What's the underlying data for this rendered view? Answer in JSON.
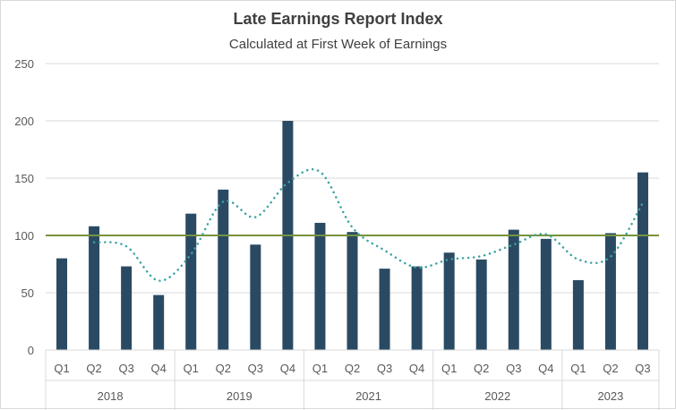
{
  "chart_data": {
    "type": "bar",
    "title": "Late Earnings Report Index",
    "subtitle": "Calculated at First Week of Earnings",
    "xlabel": "",
    "ylabel": "",
    "ylim": [
      0,
      250
    ],
    "yticks": [
      0,
      50,
      100,
      150,
      200,
      250
    ],
    "grid": true,
    "legend": "none",
    "groups": [
      {
        "label": "2018",
        "categories": [
          "Q1",
          "Q2",
          "Q3",
          "Q4"
        ]
      },
      {
        "label": "2019",
        "categories": [
          "Q1",
          "Q2",
          "Q3",
          "Q4"
        ]
      },
      {
        "label": "2021",
        "categories": [
          "Q1",
          "Q2",
          "Q3",
          "Q4"
        ]
      },
      {
        "label": "2022",
        "categories": [
          "Q1",
          "Q2",
          "Q3",
          "Q4"
        ]
      },
      {
        "label": "2023",
        "categories": [
          "Q1",
          "Q2",
          "Q3"
        ]
      }
    ],
    "values": [
      80,
      108,
      73,
      48,
      119,
      140,
      92,
      200,
      111,
      103,
      71,
      73,
      85,
      79,
      105,
      97,
      61,
      102,
      155
    ],
    "trendline": {
      "type": "moving_average",
      "period": 2,
      "style": "dotted"
    },
    "reference_line": {
      "value": 100
    },
    "colors": {
      "bar": "#2A4A63",
      "trendline": "#3BA3A3",
      "reference_line": "#77933C",
      "grid": "#d9d9d9"
    }
  }
}
